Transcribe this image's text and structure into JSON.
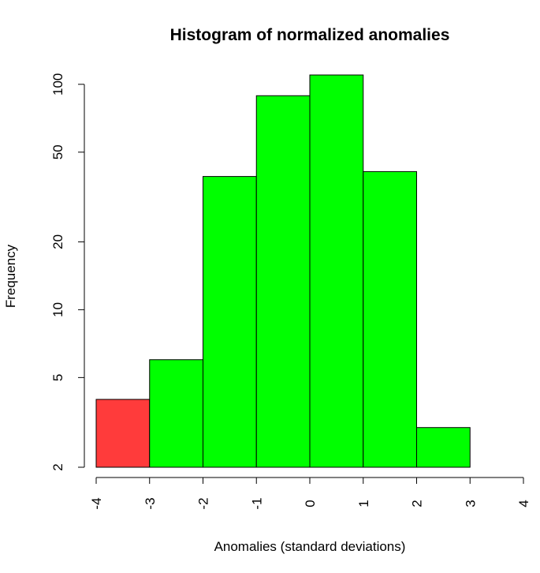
{
  "chart_data": {
    "type": "bar",
    "title": "Histogram of normalized anomalies",
    "xlabel": "Anomalies (standard deviations)",
    "ylabel": "Frequency",
    "y_scale": "log",
    "xlim": [
      -4,
      4
    ],
    "ylim": [
      2,
      110
    ],
    "x_ticks": [
      "-4",
      "-3",
      "-2",
      "-1",
      "0",
      "1",
      "2",
      "3",
      "4"
    ],
    "y_ticks": [
      "2",
      "5",
      "10",
      "20",
      "50",
      "100"
    ],
    "bins": [
      {
        "from": -4,
        "to": -3,
        "count": 4,
        "color": "#ff3b3b"
      },
      {
        "from": -3,
        "to": -2,
        "count": 6,
        "color": "#00ff00"
      },
      {
        "from": -2,
        "to": -1,
        "count": 39,
        "color": "#00ff00"
      },
      {
        "from": -1,
        "to": 0,
        "count": 89,
        "color": "#00ff00"
      },
      {
        "from": 0,
        "to": 1,
        "count": 110,
        "color": "#00ff00"
      },
      {
        "from": 1,
        "to": 2,
        "count": 41,
        "color": "#00ff00"
      },
      {
        "from": 2,
        "to": 3,
        "count": 3,
        "color": "#00ff00"
      },
      {
        "from": 3,
        "to": 4,
        "count": 2,
        "color": "#ff3b3b"
      }
    ]
  }
}
